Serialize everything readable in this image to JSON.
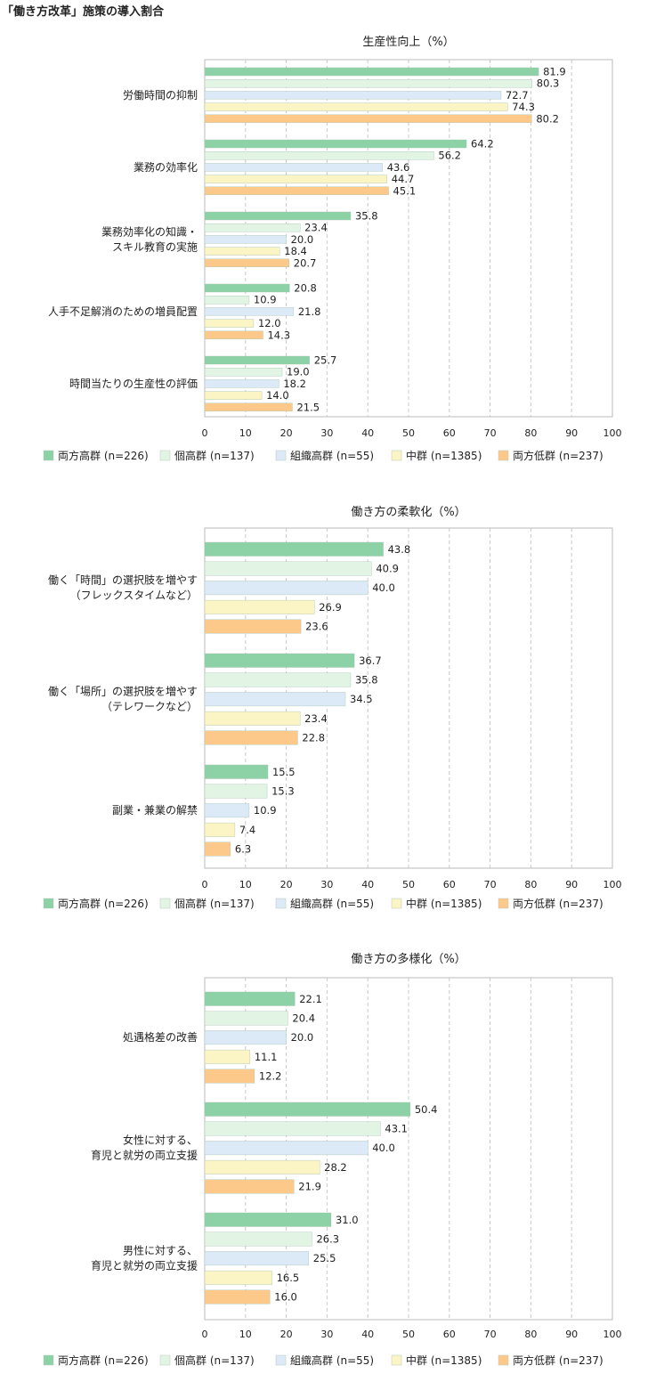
{
  "title": "「働き方改革」施策の導入割合",
  "colors": {
    "両方高群": "#8dd1a6",
    "個高群": "#e2f4e4",
    "組織高群": "#dce9f7",
    "中群": "#fbf4c4",
    "両方低群": "#fdc98a"
  },
  "chart_data": [
    {
      "type": "bar",
      "orientation": "horizontal",
      "title": "生産性向上（%）",
      "xlim": [
        0,
        100
      ],
      "xticks": [
        0,
        10,
        20,
        30,
        40,
        50,
        60,
        70,
        80,
        90,
        100
      ],
      "grid": "vertical-dashed",
      "legend": "bottom",
      "categories": [
        [
          "労働時間の抑制"
        ],
        [
          "業務の効率化"
        ],
        [
          "業務効率化の知識・",
          "スキル教育の実施"
        ],
        [
          "人手不足解消のための増員配置"
        ],
        [
          "時間当たりの生産性の評価"
        ]
      ],
      "series": [
        {
          "name": "両方高群 (n=226)",
          "color_key": "両方高群",
          "values": [
            81.9,
            64.2,
            35.8,
            20.8,
            25.7
          ]
        },
        {
          "name": "個高群 (n=137)",
          "color_key": "個高群",
          "values": [
            80.3,
            56.2,
            23.4,
            10.9,
            19.0
          ]
        },
        {
          "name": "組織高群 (n=55)",
          "color_key": "組織高群",
          "values": [
            72.7,
            43.6,
            20.0,
            21.8,
            18.2
          ]
        },
        {
          "name": "中群 (n=1385)",
          "color_key": "中群",
          "values": [
            74.3,
            44.7,
            18.4,
            12.0,
            14.0
          ]
        },
        {
          "name": "両方低群 (n=237)",
          "color_key": "両方低群",
          "values": [
            80.2,
            45.1,
            20.7,
            14.3,
            21.5
          ]
        }
      ]
    },
    {
      "type": "bar",
      "orientation": "horizontal",
      "title": "働き方の柔軟化（%）",
      "xlim": [
        0,
        100
      ],
      "xticks": [
        0,
        10,
        20,
        30,
        40,
        50,
        60,
        70,
        80,
        90,
        100
      ],
      "grid": "vertical-dashed",
      "legend": "bottom",
      "categories": [
        [
          "働く「時間」の選択肢を増やす",
          "（フレックスタイムなど）"
        ],
        [
          "働く「場所」の選択肢を増やす",
          "（テレワークなど）"
        ],
        [
          "副業・兼業の解禁"
        ]
      ],
      "series": [
        {
          "name": "両方高群 (n=226)",
          "color_key": "両方高群",
          "values": [
            43.8,
            36.7,
            15.5
          ]
        },
        {
          "name": "個高群 (n=137)",
          "color_key": "個高群",
          "values": [
            40.9,
            35.8,
            15.3
          ]
        },
        {
          "name": "組織高群 (n=55)",
          "color_key": "組織高群",
          "values": [
            40.0,
            34.5,
            10.9
          ]
        },
        {
          "name": "中群 (n=1385)",
          "color_key": "中群",
          "values": [
            26.9,
            23.4,
            7.4
          ]
        },
        {
          "name": "両方低群 (n=237)",
          "color_key": "両方低群",
          "values": [
            23.6,
            22.8,
            6.3
          ]
        }
      ]
    },
    {
      "type": "bar",
      "orientation": "horizontal",
      "title": "働き方の多様化（%）",
      "xlim": [
        0,
        100
      ],
      "xticks": [
        0,
        10,
        20,
        30,
        40,
        50,
        60,
        70,
        80,
        90,
        100
      ],
      "grid": "vertical-dashed",
      "legend": "bottom",
      "categories": [
        [
          "処遇格差の改善"
        ],
        [
          "女性に対する、",
          "育児と就労の両立支援"
        ],
        [
          "男性に対する、",
          "育児と就労の両立支援"
        ]
      ],
      "series": [
        {
          "name": "両方高群 (n=226)",
          "color_key": "両方高群",
          "values": [
            22.1,
            50.4,
            31.0
          ]
        },
        {
          "name": "個高群 (n=137)",
          "color_key": "個高群",
          "values": [
            20.4,
            43.1,
            26.3
          ]
        },
        {
          "name": "組織高群 (n=55)",
          "color_key": "組織高群",
          "values": [
            20.0,
            40.0,
            25.5
          ]
        },
        {
          "name": "中群 (n=1385)",
          "color_key": "中群",
          "values": [
            11.1,
            28.2,
            16.5
          ]
        },
        {
          "name": "両方低群 (n=237)",
          "color_key": "両方低群",
          "values": [
            12.2,
            21.9,
            16.0
          ]
        }
      ]
    }
  ]
}
